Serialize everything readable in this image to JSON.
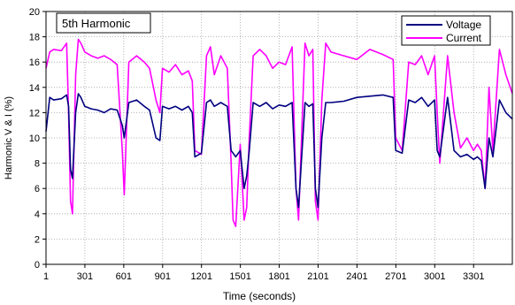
{
  "chart_data": {
    "type": "line",
    "title": "5th Harmonic",
    "xlabel": "Time (seconds)",
    "ylabel": "Harmonic V & I (%)",
    "xlim": [
      1,
      3600
    ],
    "ylim": [
      0,
      20
    ],
    "yticks": [
      0,
      2,
      4,
      6,
      8,
      10,
      12,
      14,
      16,
      18,
      20
    ],
    "xticks": [
      1,
      301,
      601,
      901,
      1201,
      1501,
      1801,
      2101,
      2401,
      2701,
      3001,
      3301
    ],
    "xtick_labels": [
      "1",
      "301",
      "601",
      "901",
      "1201",
      "1501",
      "1801",
      "2101",
      "2401",
      "2701",
      "3001",
      "3301"
    ],
    "grid": true,
    "legend_position": "top-right",
    "series": [
      {
        "name": "Voltage",
        "color": "#000080",
        "x": [
          1,
          30,
          60,
          120,
          160,
          175,
          190,
          205,
          230,
          250,
          270,
          300,
          350,
          400,
          450,
          500,
          550,
          590,
          605,
          640,
          700,
          760,
          800,
          850,
          880,
          900,
          950,
          1000,
          1050,
          1100,
          1130,
          1150,
          1200,
          1240,
          1270,
          1300,
          1350,
          1400,
          1430,
          1445,
          1465,
          1500,
          1530,
          1550,
          1570,
          1600,
          1650,
          1700,
          1750,
          1800,
          1850,
          1900,
          1930,
          1950,
          1980,
          2000,
          2030,
          2060,
          2080,
          2100,
          2130,
          2160,
          2200,
          2300,
          2400,
          2500,
          2600,
          2680,
          2700,
          2750,
          2800,
          2850,
          2900,
          2950,
          3000,
          3020,
          3040,
          3100,
          3150,
          3200,
          3250,
          3300,
          3330,
          3360,
          3390,
          3420,
          3450,
          3500,
          3550,
          3600
        ],
        "y": [
          10.5,
          13.2,
          13,
          13.1,
          13.4,
          12.5,
          7.5,
          6.8,
          12,
          13.5,
          13.2,
          12.5,
          12.3,
          12.2,
          12,
          12.3,
          12.2,
          11,
          10,
          12.8,
          13,
          12.5,
          12.2,
          10,
          9.8,
          12.5,
          12.3,
          12.5,
          12.2,
          12.5,
          12,
          8.5,
          8.8,
          12.8,
          13,
          12.5,
          12.8,
          12.5,
          9,
          8.8,
          8.5,
          9,
          6,
          7,
          9,
          12.8,
          12.5,
          12.8,
          12.3,
          12.6,
          12.5,
          12.8,
          6,
          4.5,
          9.5,
          12.8,
          12.5,
          12.7,
          6,
          4.5,
          10,
          12.8,
          12.8,
          12.9,
          13.2,
          13.3,
          13.4,
          13.2,
          9,
          8.8,
          13,
          12.8,
          13.2,
          12.5,
          13,
          9,
          8.5,
          13.2,
          9,
          8.5,
          8.7,
          8.3,
          8.5,
          8.2,
          6,
          10,
          8.5,
          13,
          12,
          11.5
        ]
      },
      {
        "name": "Current",
        "color": "#ff00ff",
        "x": [
          1,
          30,
          60,
          120,
          160,
          175,
          190,
          205,
          230,
          250,
          270,
          300,
          350,
          400,
          450,
          500,
          550,
          590,
          605,
          640,
          700,
          760,
          800,
          850,
          880,
          900,
          950,
          1000,
          1050,
          1100,
          1130,
          1150,
          1200,
          1240,
          1270,
          1300,
          1350,
          1400,
          1430,
          1445,
          1465,
          1500,
          1530,
          1550,
          1570,
          1600,
          1650,
          1700,
          1750,
          1800,
          1850,
          1900,
          1930,
          1950,
          1980,
          2000,
          2030,
          2060,
          2080,
          2100,
          2130,
          2160,
          2200,
          2300,
          2400,
          2500,
          2600,
          2680,
          2700,
          2750,
          2800,
          2850,
          2900,
          2950,
          3000,
          3020,
          3040,
          3100,
          3150,
          3200,
          3250,
          3300,
          3330,
          3360,
          3390,
          3420,
          3450,
          3500,
          3550,
          3600
        ],
        "y": [
          15.5,
          16.8,
          17,
          16.9,
          17.5,
          12,
          5,
          4,
          15,
          17.8,
          17.5,
          16.8,
          16.5,
          16.3,
          16.5,
          16.2,
          15.8,
          9,
          5.5,
          16,
          16.5,
          16,
          15.5,
          13,
          12,
          15.5,
          15.2,
          15.8,
          15,
          15.3,
          14.5,
          9,
          8.7,
          16.5,
          17.2,
          15,
          16.5,
          15.5,
          8,
          3.5,
          3,
          9.5,
          3.5,
          4.5,
          10,
          16.5,
          17,
          16.5,
          15.5,
          16,
          15.8,
          17.2,
          6,
          3.5,
          12,
          17.5,
          16.5,
          17,
          5,
          3.5,
          13,
          17.5,
          16.8,
          16.5,
          16.2,
          17,
          16.6,
          16.2,
          10,
          9,
          16,
          15.8,
          16.5,
          15,
          16.5,
          12,
          8,
          16.5,
          12,
          9.2,
          10,
          9,
          9.5,
          9,
          6,
          14,
          9,
          17,
          15,
          13.5
        ]
      }
    ]
  }
}
